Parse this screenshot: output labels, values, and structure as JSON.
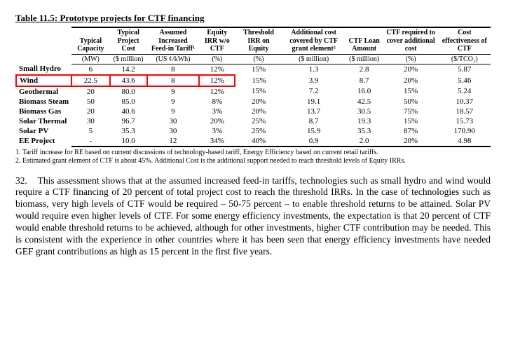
{
  "table": {
    "title": "Table 11.5: Prototype projects for CTF financing",
    "columns": [
      "Typical Capacity",
      "Typical Project Cost",
      "Assumed Increased Feed-in Tariff¹",
      "Equity IRR w/o CTF",
      "Threshold IRR on Equity",
      "Additional cost covered by CTF grant element²",
      "CTF Loan Amount",
      "CTF required to cover additional cost",
      "Cost effectiveness of CTF"
    ],
    "units": [
      "(MW)",
      "($ million)",
      "(US ¢/kWh)",
      "(%)",
      "(%)",
      "($ million)",
      "($ million)",
      "(%)",
      "($/TCO₂)"
    ],
    "rows": [
      {
        "label": "Small Hydro",
        "cells": [
          "6",
          "14.2",
          "8",
          "12%",
          "15%",
          "1.3",
          "2.8",
          "20%",
          "5.87"
        ]
      },
      {
        "label": "Wind",
        "cells": [
          "22.5",
          "43.6",
          "8",
          "12%",
          "15%",
          "3.9",
          "8.7",
          "20%",
          "5.46"
        ],
        "highlight": true
      },
      {
        "label": "Geothermal",
        "cells": [
          "20",
          "80.0",
          "9",
          "12%",
          "15%",
          "7.2",
          "16.0",
          "15%",
          "5.24"
        ]
      },
      {
        "label": "Biomass Steam",
        "cells": [
          "50",
          "85.0",
          "9",
          "8%",
          "20%",
          "19.1",
          "42.5",
          "50%",
          "10.37"
        ]
      },
      {
        "label": "Biomass Gas",
        "cells": [
          "20",
          "40.6",
          "9",
          "3%",
          "20%",
          "13.7",
          "30.5",
          "75%",
          "18.57"
        ]
      },
      {
        "label": "Solar Thermal",
        "cells": [
          "30",
          "96.7",
          "30",
          "20%",
          "25%",
          "8.7",
          "19.3",
          "15%",
          "15.73"
        ]
      },
      {
        "label": "Solar PV",
        "cells": [
          "5",
          "35.3",
          "30",
          "3%",
          "25%",
          "15.9",
          "35.3",
          "87%",
          "170.90"
        ]
      },
      {
        "label": "EE Project",
        "cells": [
          "-",
          "10.0",
          "12",
          "34%",
          "40%",
          "0.9",
          "2.0",
          "20%",
          "4.98"
        ]
      }
    ],
    "footnotes": [
      "1. Tariff increase for RE based on current discussions of technology-based tariff, Energy Efficiency based on current retail tariffs.",
      "2. Estimated grant element of CTF is about 45%. Additional Cost is the additional support needed to reach threshold levels of Equity IRRs."
    ],
    "highlight_color": "#ff0000"
  },
  "paragraph": {
    "number": "32.",
    "text": "This assessment shows that at the assumed increased feed-in tariffs, technologies such as small hydro and wind would require a CTF financing of 20 percent of total project cost to reach the threshold IRRs.  In the case of technologies such as biomass, very high levels of CTF would be required – 50-75 percent – to enable threshold returns to be attained.  Solar PV would require even higher levels of CTF.  For some energy efficiency investments, the expectation is that 20 percent of CTF would enable threshold returns to be achieved, although for other investments, higher CTF contribution may be needed.  This is consistent with the experience in other countries where it has been seen that energy efficiency investments have needed GEF grant contributions as high as 15 percent in the first five years."
  }
}
